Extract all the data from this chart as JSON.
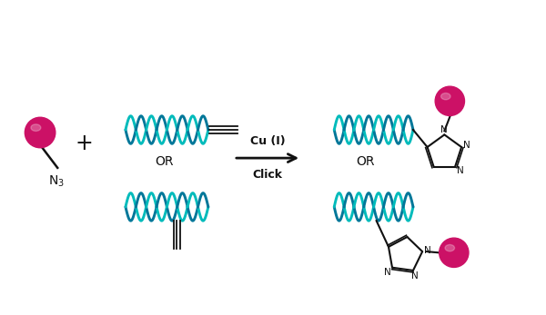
{
  "bg_color": "#ffffff",
  "ball_color": "#cc1166",
  "dna_color1": "#00bbbb",
  "dna_color2": "#007799",
  "line_color": "#111111",
  "figsize": [
    6.0,
    3.47
  ],
  "dpi": 100,
  "cu_label": "Cu (I)",
  "click_label": "Click",
  "or_label": "OR",
  "plus_label": "+"
}
